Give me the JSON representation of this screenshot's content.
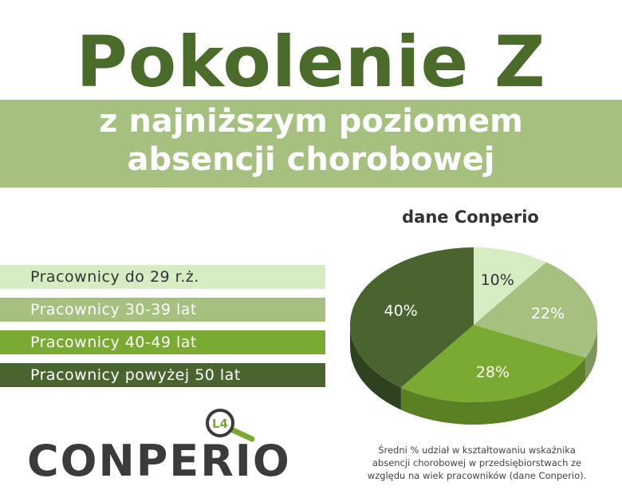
{
  "title": "Pokolenie Z",
  "subtitle": {
    "line1": "z najniższym poziomem",
    "line2": "absencji chorobowej"
  },
  "source_label": "dane Conperio",
  "legend": [
    {
      "label": "Pracownicy do 29 r.ż.",
      "color": "#d6ecc2",
      "text_color": "#333333"
    },
    {
      "label": "Pracownicy 30-39 lat",
      "color": "#a6c07f",
      "text_color": "#ffffff"
    },
    {
      "label": "Pracownicy 40-49 lat",
      "color": "#7aaa32",
      "text_color": "#ffffff"
    },
    {
      "label": "Pracownicy powyżej 50 lat",
      "color": "#4a6430",
      "text_color": "#ffffff"
    }
  ],
  "chart_data": {
    "type": "pie",
    "categories": [
      "Pracownicy do 29 r.ż.",
      "Pracownicy 30-39 lat",
      "Pracownicy 40-49 lat",
      "Pracownicy powyżej 50 lat"
    ],
    "values": [
      10,
      22,
      28,
      40
    ],
    "labels": [
      "10%",
      "22%",
      "28%",
      "40%"
    ],
    "colors": [
      "#d6ecc2",
      "#a6c07f",
      "#7aaa32",
      "#4a6430"
    ],
    "side_colors": [
      "#a9c294",
      "#7d9560",
      "#5b8024",
      "#2f4220"
    ],
    "label_colors": [
      "#333333",
      "#ffffff",
      "#ffffff",
      "#ffffff"
    ],
    "legend_position": "left",
    "style": "3d"
  },
  "logo": {
    "word": "CONPERIO",
    "badge": "L4",
    "badge_color": "#7aaa32"
  },
  "note": {
    "line1": "Średni % udział w kształtowaniu wskaźnika",
    "line2": "absencji chorobowej w przedsiębiorstwach ze",
    "line3": "względu na wiek pracowników (dane Conperio)."
  }
}
